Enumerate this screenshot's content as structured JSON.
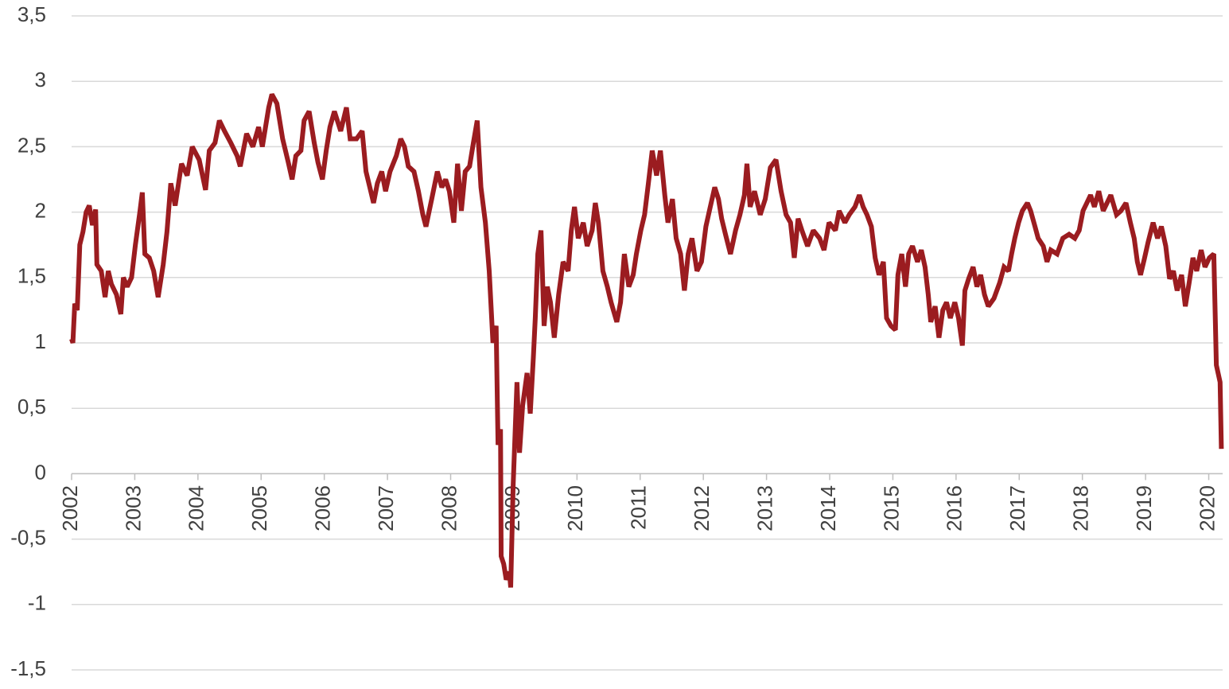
{
  "chart_data": {
    "type": "line",
    "color": "#9b1c20",
    "grid": true,
    "xlim": [
      2002,
      2020.22
    ],
    "ylim": [
      -1.5,
      3.5
    ],
    "xticks": [
      2002,
      2003,
      2004,
      2005,
      2006,
      2007,
      2008,
      2009,
      2010,
      2011,
      2012,
      2013,
      2014,
      2015,
      2016,
      2017,
      2018,
      2019,
      2020
    ],
    "yticks": [
      {
        "value": -1.5,
        "label": "-1,5"
      },
      -1,
      {
        "value": -0.5,
        "label": "-0,5"
      },
      0,
      {
        "value": 0.5,
        "label": "0,5"
      },
      1,
      {
        "value": 1.5,
        "label": "1,5"
      },
      2,
      {
        "value": 2.5,
        "label": "2,5"
      },
      3,
      {
        "value": 3.5,
        "label": "3,5"
      }
    ],
    "x": [
      2002.0,
      2002.02,
      2002.05,
      2002.09,
      2002.13,
      2002.18,
      2002.23,
      2002.28,
      2002.33,
      2002.38,
      2002.4,
      2002.47,
      2002.53,
      2002.58,
      2002.63,
      2002.71,
      2002.78,
      2002.82,
      2002.88,
      2002.95,
      2003.01,
      2003.08,
      2003.12,
      2003.16,
      2003.23,
      2003.3,
      2003.37,
      2003.45,
      2003.51,
      2003.57,
      2003.64,
      2003.74,
      2003.83,
      2003.91,
      2004.02,
      2004.12,
      2004.18,
      2004.27,
      2004.34,
      2004.42,
      2004.52,
      2004.62,
      2004.67,
      2004.77,
      2004.87,
      2004.96,
      2005.02,
      2005.12,
      2005.17,
      2005.25,
      2005.34,
      2005.43,
      2005.49,
      2005.55,
      2005.63,
      2005.68,
      2005.76,
      2005.84,
      2005.9,
      2005.97,
      2006.03,
      2006.09,
      2006.16,
      2006.26,
      2006.35,
      2006.41,
      2006.51,
      2006.6,
      2006.66,
      2006.72,
      2006.78,
      2006.84,
      2006.91,
      2006.97,
      2007.04,
      2007.14,
      2007.21,
      2007.27,
      2007.33,
      2007.42,
      2007.49,
      2007.56,
      2007.61,
      2007.7,
      2007.79,
      2007.86,
      2007.92,
      2007.98,
      2008.05,
      2008.11,
      2008.17,
      2008.23,
      2008.3,
      2008.36,
      2008.42,
      2008.48,
      2008.55,
      2008.61,
      2008.67,
      2008.72,
      2008.75,
      2008.79,
      2008.8,
      2008.84,
      2008.88,
      2008.93,
      2008.95,
      2008.99,
      2009.05,
      2009.09,
      2009.14,
      2009.21,
      2009.26,
      2009.31,
      2009.34,
      2009.38,
      2009.43,
      2009.48,
      2009.53,
      2009.58,
      2009.64,
      2009.71,
      2009.78,
      2009.86,
      2009.91,
      2009.96,
      2010.02,
      2010.1,
      2010.16,
      2010.24,
      2010.29,
      2010.34,
      2010.41,
      2010.48,
      2010.54,
      2010.63,
      2010.69,
      2010.75,
      2010.82,
      2010.89,
      2010.94,
      2011.01,
      2011.07,
      2011.13,
      2011.19,
      2011.26,
      2011.32,
      2011.39,
      2011.44,
      2011.51,
      2011.57,
      2011.64,
      2011.7,
      2011.76,
      2011.82,
      2011.9,
      2011.97,
      2012.04,
      2012.11,
      2012.18,
      2012.24,
      2012.29,
      2012.35,
      2012.43,
      2012.51,
      2012.58,
      2012.65,
      2012.69,
      2012.74,
      2012.81,
      2012.9,
      2012.98,
      2013.06,
      2013.15,
      2013.23,
      2013.31,
      2013.38,
      2013.44,
      2013.5,
      2013.56,
      2013.65,
      2013.74,
      2013.84,
      2013.91,
      2013.99,
      2014.09,
      2014.15,
      2014.24,
      2014.31,
      2014.4,
      2014.47,
      2014.53,
      2014.59,
      2014.66,
      2014.72,
      2014.78,
      2014.85,
      2014.9,
      2014.97,
      2015.04,
      2015.08,
      2015.14,
      2015.2,
      2015.25,
      2015.31,
      2015.39,
      2015.45,
      2015.51,
      2015.56,
      2015.6,
      2015.67,
      2015.73,
      2015.79,
      2015.85,
      2015.91,
      2015.98,
      2016.04,
      2016.1,
      2016.14,
      2016.2,
      2016.27,
      2016.33,
      2016.39,
      2016.45,
      2016.51,
      2016.6,
      2016.69,
      2016.76,
      2016.83,
      2016.88,
      2016.93,
      2016.99,
      2017.05,
      2017.13,
      2017.18,
      2017.25,
      2017.3,
      2017.38,
      2017.44,
      2017.5,
      2017.6,
      2017.69,
      2017.79,
      2017.88,
      2017.95,
      2018.01,
      2018.07,
      2018.13,
      2018.19,
      2018.26,
      2018.33,
      2018.39,
      2018.45,
      2018.54,
      2018.61,
      2018.69,
      2018.76,
      2018.82,
      2018.87,
      2018.92,
      2018.98,
      2019.04,
      2019.12,
      2019.19,
      2019.25,
      2019.32,
      2019.38,
      2019.44,
      2019.5,
      2019.57,
      2019.63,
      2019.69,
      2019.75,
      2019.81,
      2019.88,
      2019.94,
      2020.01,
      2020.08,
      2020.12,
      2020.18,
      2020.2
    ],
    "values": [
      1.03,
      1.0,
      1.3,
      1.25,
      1.75,
      1.85,
      2.0,
      2.05,
      1.9,
      2.02,
      1.6,
      1.55,
      1.35,
      1.55,
      1.45,
      1.37,
      1.22,
      1.5,
      1.43,
      1.5,
      1.75,
      2.0,
      2.15,
      1.68,
      1.65,
      1.55,
      1.35,
      1.6,
      1.85,
      2.22,
      2.05,
      2.37,
      2.28,
      2.5,
      2.4,
      2.17,
      2.47,
      2.53,
      2.7,
      2.62,
      2.53,
      2.43,
      2.35,
      2.6,
      2.5,
      2.65,
      2.5,
      2.8,
      2.9,
      2.83,
      2.56,
      2.38,
      2.25,
      2.43,
      2.47,
      2.7,
      2.77,
      2.53,
      2.38,
      2.25,
      2.47,
      2.65,
      2.77,
      2.62,
      2.8,
      2.56,
      2.56,
      2.62,
      2.31,
      2.19,
      2.07,
      2.22,
      2.31,
      2.16,
      2.31,
      2.43,
      2.56,
      2.5,
      2.35,
      2.31,
      2.16,
      1.98,
      1.89,
      2.1,
      2.31,
      2.19,
      2.25,
      2.16,
      1.92,
      2.37,
      2.01,
      2.31,
      2.35,
      2.53,
      2.7,
      2.19,
      1.92,
      1.55,
      1.0,
      1.13,
      0.22,
      0.34,
      -0.63,
      -0.69,
      -0.81,
      -0.75,
      -0.87,
      -0.09,
      0.7,
      0.16,
      0.52,
      0.77,
      0.46,
      0.89,
      1.19,
      1.68,
      1.86,
      1.13,
      1.43,
      1.31,
      1.04,
      1.37,
      1.62,
      1.55,
      1.86,
      2.04,
      1.8,
      1.92,
      1.74,
      1.86,
      2.07,
      1.92,
      1.55,
      1.43,
      1.31,
      1.16,
      1.31,
      1.68,
      1.43,
      1.52,
      1.68,
      1.86,
      1.98,
      2.22,
      2.47,
      2.28,
      2.47,
      2.13,
      1.92,
      2.1,
      1.8,
      1.68,
      1.4,
      1.68,
      1.8,
      1.55,
      1.62,
      1.89,
      2.04,
      2.19,
      2.1,
      1.95,
      1.83,
      1.68,
      1.86,
      1.98,
      2.13,
      2.37,
      2.04,
      2.16,
      1.98,
      2.1,
      2.34,
      2.4,
      2.16,
      1.98,
      1.92,
      1.65,
      1.95,
      1.86,
      1.74,
      1.86,
      1.8,
      1.71,
      1.92,
      1.86,
      2.01,
      1.92,
      1.98,
      2.04,
      2.13,
      2.04,
      1.98,
      1.89,
      1.65,
      1.52,
      1.62,
      1.19,
      1.13,
      1.1,
      1.52,
      1.68,
      1.43,
      1.68,
      1.74,
      1.62,
      1.71,
      1.58,
      1.37,
      1.16,
      1.28,
      1.04,
      1.25,
      1.31,
      1.19,
      1.31,
      1.19,
      0.98,
      1.4,
      1.49,
      1.58,
      1.43,
      1.52,
      1.37,
      1.28,
      1.34,
      1.46,
      1.58,
      1.55,
      1.68,
      1.8,
      1.92,
      2.01,
      2.07,
      2.01,
      1.89,
      1.8,
      1.74,
      1.62,
      1.71,
      1.68,
      1.8,
      1.83,
      1.8,
      1.86,
      2.01,
      2.07,
      2.13,
      2.04,
      2.16,
      2.01,
      2.07,
      2.13,
      1.98,
      2.01,
      2.07,
      1.92,
      1.8,
      1.62,
      1.52,
      1.64,
      1.77,
      1.92,
      1.8,
      1.89,
      1.74,
      1.49,
      1.55,
      1.4,
      1.52,
      1.28,
      1.46,
      1.65,
      1.55,
      1.71,
      1.58,
      1.65,
      1.68,
      0.83,
      0.7,
      0.19
    ]
  }
}
